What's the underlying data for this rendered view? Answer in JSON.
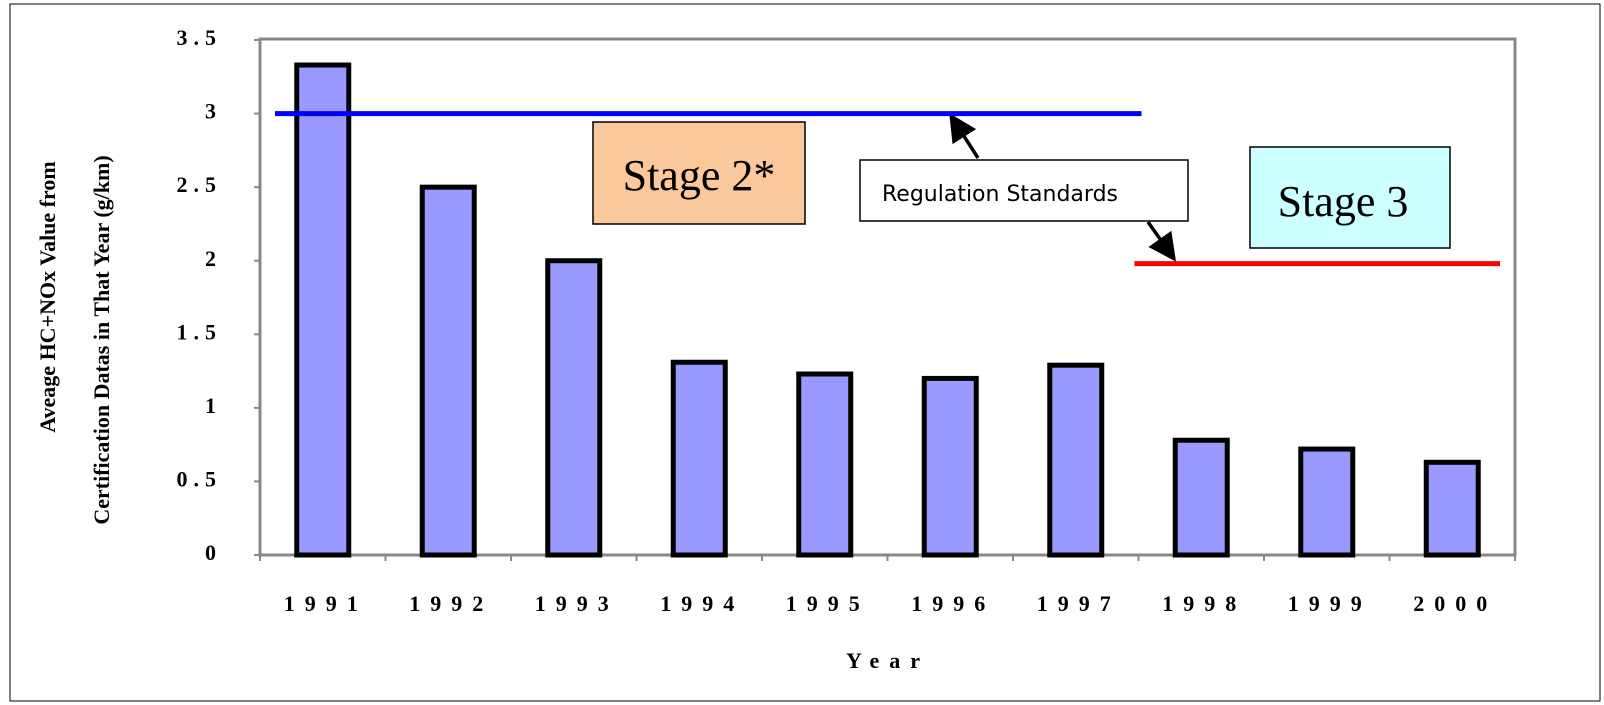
{
  "chart_data": {
    "type": "bar",
    "y_label": [
      "Aveage HC+NOx Value from",
      "Certification Datas in That Year (g/km)"
    ],
    "x_label": "Year",
    "categories": [
      "1991",
      "1992",
      "1993",
      "1994",
      "1995",
      "1996",
      "1997",
      "1998",
      "1999",
      "2000"
    ],
    "values": [
      3.33,
      2.5,
      2.0,
      1.31,
      1.23,
      1.2,
      1.29,
      0.78,
      0.72,
      0.63
    ],
    "color": "#9999ff",
    "ylim": [
      0,
      3.5
    ],
    "yticks": [
      0,
      0.5,
      1,
      1.5,
      2,
      2.5,
      3,
      3.5
    ],
    "reference_lines": [
      {
        "value": 3,
        "color": "#0000ff",
        "from": "1991",
        "to": "1997"
      },
      {
        "value": 1.98,
        "color": "#ff0000",
        "from": "1998",
        "to": "2000"
      }
    ],
    "annotations": [
      "Stage 2*",
      "Regulation Standards",
      "Stage 3"
    ]
  }
}
